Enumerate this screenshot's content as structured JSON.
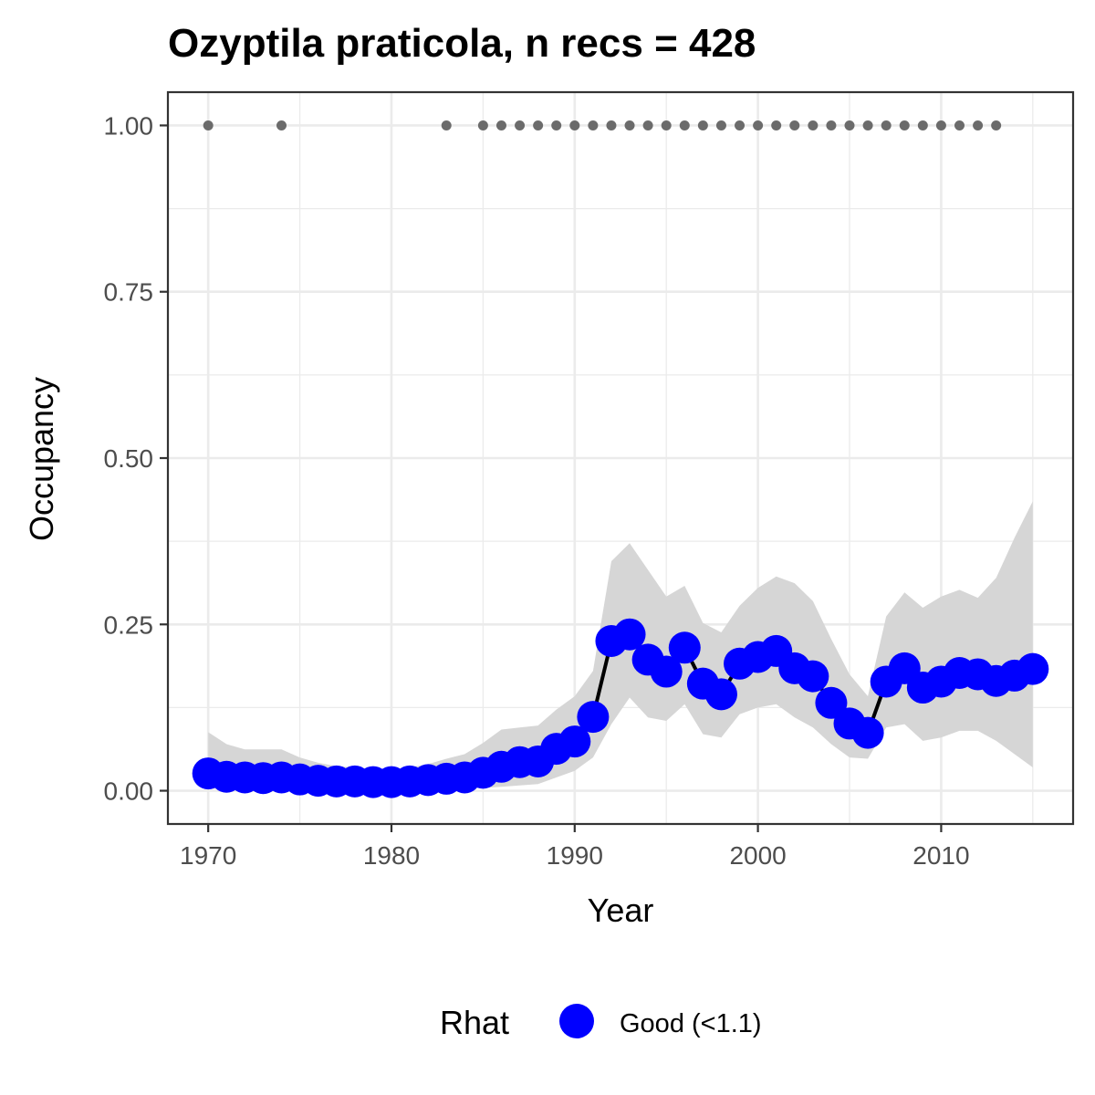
{
  "chart_data": {
    "type": "line",
    "title": "Ozyptila praticola, n recs = 428",
    "xlabel": "Year",
    "ylabel": "Occupancy",
    "xlim": [
      1967.8,
      2017.2
    ],
    "ylim": [
      -0.05,
      1.05
    ],
    "x_ticks": [
      1970,
      1980,
      1990,
      2000,
      2010
    ],
    "x_tick_labels": [
      "1970",
      "1980",
      "1990",
      "2000",
      "2010"
    ],
    "y_ticks": [
      0,
      0.25,
      0.5,
      0.75,
      1.0
    ],
    "y_tick_labels": [
      "0.00",
      "0.25",
      "0.50",
      "0.75",
      "1.00"
    ],
    "grid": true,
    "legend": {
      "title": "Rhat",
      "position": "bottom",
      "entries": [
        {
          "label": "Good (<1.1)",
          "color": "#0000ff"
        }
      ]
    },
    "colors": {
      "occupancy": "#0000ff",
      "line": "#000000",
      "ribbon": "#d6d6d6",
      "records": "#6b6b6b",
      "panel_border": "#333333",
      "grid": "#ebebeb"
    },
    "series": [
      {
        "name": "Good (<1.1)",
        "x": [
          1970,
          1971,
          1972,
          1973,
          1974,
          1975,
          1976,
          1977,
          1978,
          1979,
          1980,
          1981,
          1982,
          1983,
          1984,
          1985,
          1986,
          1987,
          1988,
          1989,
          1990,
          1991,
          1992,
          1993,
          1994,
          1995,
          1996,
          1997,
          1998,
          1999,
          2000,
          2001,
          2002,
          2003,
          2004,
          2005,
          2006,
          2007,
          2008,
          2009,
          2010,
          2011,
          2012,
          2013,
          2014,
          2015
        ],
        "y": [
          0.026,
          0.021,
          0.02,
          0.019,
          0.02,
          0.017,
          0.015,
          0.014,
          0.014,
          0.013,
          0.013,
          0.014,
          0.016,
          0.018,
          0.02,
          0.027,
          0.036,
          0.043,
          0.044,
          0.063,
          0.074,
          0.111,
          0.225,
          0.235,
          0.197,
          0.179,
          0.215,
          0.161,
          0.145,
          0.191,
          0.201,
          0.21,
          0.184,
          0.172,
          0.132,
          0.101,
          0.087,
          0.164,
          0.184,
          0.155,
          0.164,
          0.177,
          0.175,
          0.165,
          0.173,
          0.183
        ],
        "lower": [
          0.003,
          0.003,
          0.003,
          0.003,
          0.003,
          0.002,
          0.002,
          0.002,
          0.002,
          0.002,
          0.002,
          0.002,
          0.002,
          0.002,
          0.003,
          0.004,
          0.006,
          0.008,
          0.01,
          0.02,
          0.03,
          0.05,
          0.1,
          0.14,
          0.11,
          0.105,
          0.13,
          0.085,
          0.08,
          0.115,
          0.125,
          0.13,
          0.11,
          0.095,
          0.07,
          0.05,
          0.048,
          0.095,
          0.1,
          0.075,
          0.08,
          0.09,
          0.09,
          0.075,
          0.055,
          0.035
        ],
        "upper": [
          0.088,
          0.07,
          0.062,
          0.062,
          0.062,
          0.05,
          0.042,
          0.037,
          0.035,
          0.033,
          0.033,
          0.035,
          0.04,
          0.048,
          0.055,
          0.072,
          0.092,
          0.095,
          0.098,
          0.122,
          0.142,
          0.18,
          0.345,
          0.372,
          0.332,
          0.292,
          0.308,
          0.252,
          0.238,
          0.278,
          0.305,
          0.322,
          0.312,
          0.285,
          0.228,
          0.175,
          0.142,
          0.262,
          0.298,
          0.275,
          0.292,
          0.302,
          0.29,
          0.32,
          0.38,
          0.435
        ]
      }
    ],
    "record_years": [
      1970,
      1974,
      1983,
      1985,
      1986,
      1987,
      1988,
      1989,
      1990,
      1991,
      1992,
      1993,
      1994,
      1995,
      1996,
      1997,
      1998,
      1999,
      2000,
      2001,
      2002,
      2003,
      2004,
      2005,
      2006,
      2007,
      2008,
      2009,
      2010,
      2011,
      2012,
      2013
    ],
    "record_value": 1.0
  }
}
